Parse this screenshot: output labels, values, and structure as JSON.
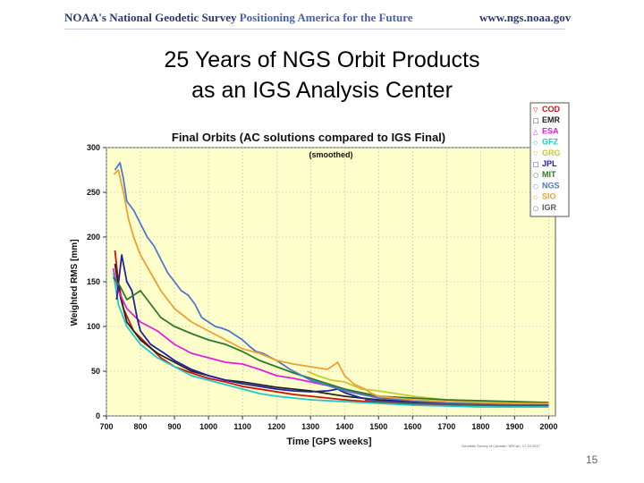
{
  "header": {
    "org": "NOAA's",
    "survey": "National Geodetic Survey",
    "tagline": "Positioning America for the Future",
    "url": "www.ngs.noaa.gov"
  },
  "slide": {
    "title_line1": "25 Years of NGS Orbit Products",
    "title_line2": "as an IGS Analysis Center",
    "page_number": "15"
  },
  "chart_data": {
    "type": "line",
    "title": "Final Orbits (AC solutions compared to IGS Final)",
    "subtitle": "(smoothed)",
    "xlabel": "Time [GPS weeks]",
    "ylabel": "Weighted RMS [mm]",
    "xlim": [
      700,
      2020
    ],
    "ylim": [
      0,
      300
    ],
    "xticks": [
      700,
      800,
      900,
      1000,
      1100,
      1200,
      1300,
      1400,
      1500,
      1600,
      1700,
      1800,
      1900,
      2000
    ],
    "yticks": [
      0,
      50,
      100,
      150,
      200,
      250,
      300
    ],
    "credit": "Geodetic Survey of Canada / NRCan, 17.10.2017",
    "legend_position": "top-right",
    "series": [
      {
        "name": "COD",
        "symbol": "▽",
        "color": "#d01010",
        "points": [
          [
            725,
            185
          ],
          [
            735,
            150
          ],
          [
            750,
            120
          ],
          [
            780,
            95
          ],
          [
            820,
            80
          ],
          [
            860,
            65
          ],
          [
            900,
            55
          ],
          [
            950,
            48
          ],
          [
            1000,
            42
          ],
          [
            1050,
            38
          ],
          [
            1100,
            33
          ],
          [
            1150,
            30
          ],
          [
            1200,
            27
          ],
          [
            1250,
            24
          ],
          [
            1300,
            22
          ],
          [
            1350,
            20
          ],
          [
            1400,
            18
          ],
          [
            1500,
            15
          ],
          [
            1600,
            13
          ],
          [
            1700,
            12
          ],
          [
            1800,
            12
          ],
          [
            1900,
            11
          ],
          [
            2000,
            11
          ]
        ]
      },
      {
        "name": "EMR",
        "symbol": "□",
        "color": "#222222",
        "points": [
          [
            725,
            170
          ],
          [
            740,
            135
          ],
          [
            760,
            105
          ],
          [
            800,
            85
          ],
          [
            850,
            70
          ],
          [
            900,
            60
          ],
          [
            950,
            50
          ],
          [
            1000,
            45
          ],
          [
            1050,
            40
          ],
          [
            1100,
            38
          ],
          [
            1150,
            35
          ],
          [
            1200,
            32
          ],
          [
            1250,
            30
          ],
          [
            1300,
            28
          ],
          [
            1350,
            25
          ],
          [
            1400,
            22
          ],
          [
            1500,
            18
          ],
          [
            1600,
            16
          ],
          [
            1700,
            15
          ],
          [
            1800,
            14
          ],
          [
            1900,
            13
          ],
          [
            2000,
            12
          ]
        ]
      },
      {
        "name": "ESA",
        "symbol": "△",
        "color": "#e020e0",
        "points": [
          [
            720,
            165
          ],
          [
            735,
            140
          ],
          [
            760,
            120
          ],
          [
            800,
            105
          ],
          [
            850,
            95
          ],
          [
            900,
            80
          ],
          [
            950,
            70
          ],
          [
            1000,
            65
          ],
          [
            1050,
            60
          ],
          [
            1100,
            58
          ],
          [
            1150,
            52
          ],
          [
            1200,
            45
          ],
          [
            1250,
            42
          ],
          [
            1300,
            38
          ],
          [
            1350,
            34
          ],
          [
            1400,
            30
          ],
          [
            1450,
            25
          ],
          [
            1500,
            20
          ],
          [
            1600,
            17
          ],
          [
            1700,
            15
          ],
          [
            1800,
            14
          ],
          [
            1900,
            13
          ],
          [
            2000,
            13
          ]
        ]
      },
      {
        "name": "GFZ",
        "symbol": "◇",
        "color": "#20c8c8",
        "points": [
          [
            720,
            160
          ],
          [
            735,
            125
          ],
          [
            760,
            100
          ],
          [
            800,
            80
          ],
          [
            850,
            65
          ],
          [
            900,
            55
          ],
          [
            950,
            45
          ],
          [
            1000,
            40
          ],
          [
            1050,
            35
          ],
          [
            1100,
            30
          ],
          [
            1150,
            25
          ],
          [
            1200,
            22
          ],
          [
            1250,
            20
          ],
          [
            1300,
            18
          ],
          [
            1400,
            16
          ],
          [
            1500,
            14
          ],
          [
            1600,
            12
          ],
          [
            1700,
            11
          ],
          [
            1800,
            10
          ],
          [
            1900,
            10
          ],
          [
            2000,
            10
          ]
        ]
      },
      {
        "name": "GRG",
        "symbol": "▽",
        "color": "#c8c830",
        "points": [
          [
            1290,
            50
          ],
          [
            1320,
            45
          ],
          [
            1360,
            40
          ],
          [
            1400,
            38
          ],
          [
            1450,
            30
          ],
          [
            1500,
            28
          ],
          [
            1550,
            25
          ],
          [
            1600,
            22
          ],
          [
            1700,
            18
          ],
          [
            1800,
            16
          ],
          [
            1900,
            15
          ],
          [
            2000,
            14
          ]
        ]
      },
      {
        "name": "JPL",
        "symbol": "□",
        "color": "#2020a0",
        "points": [
          [
            730,
            130
          ],
          [
            745,
            180
          ],
          [
            760,
            150
          ],
          [
            775,
            140
          ],
          [
            790,
            110
          ],
          [
            800,
            95
          ],
          [
            830,
            80
          ],
          [
            870,
            70
          ],
          [
            900,
            62
          ],
          [
            950,
            52
          ],
          [
            1000,
            45
          ],
          [
            1050,
            40
          ],
          [
            1100,
            36
          ],
          [
            1150,
            33
          ],
          [
            1200,
            30
          ],
          [
            1250,
            28
          ],
          [
            1300,
            27
          ],
          [
            1350,
            28
          ],
          [
            1380,
            30
          ],
          [
            1400,
            26
          ],
          [
            1450,
            20
          ],
          [
            1500,
            17
          ],
          [
            1600,
            15
          ],
          [
            1700,
            14
          ],
          [
            1800,
            13
          ],
          [
            1900,
            12
          ],
          [
            2000,
            12
          ]
        ]
      },
      {
        "name": "MIT",
        "symbol": "○",
        "color": "#2a7a2a",
        "points": [
          [
            720,
            155
          ],
          [
            740,
            145
          ],
          [
            760,
            130
          ],
          [
            800,
            140
          ],
          [
            830,
            125
          ],
          [
            860,
            110
          ],
          [
            900,
            100
          ],
          [
            950,
            92
          ],
          [
            1000,
            85
          ],
          [
            1050,
            80
          ],
          [
            1100,
            72
          ],
          [
            1150,
            62
          ],
          [
            1200,
            55
          ],
          [
            1250,
            48
          ],
          [
            1300,
            42
          ],
          [
            1350,
            36
          ],
          [
            1400,
            30
          ],
          [
            1450,
            26
          ],
          [
            1500,
            22
          ],
          [
            1600,
            20
          ],
          [
            1700,
            18
          ],
          [
            1800,
            17
          ],
          [
            1900,
            16
          ],
          [
            2000,
            15
          ]
        ]
      },
      {
        "name": "NGS",
        "symbol": "○",
        "color": "#4a78d0",
        "points": [
          [
            725,
            275
          ],
          [
            740,
            283
          ],
          [
            750,
            265
          ],
          [
            760,
            240
          ],
          [
            780,
            230
          ],
          [
            800,
            215
          ],
          [
            820,
            200
          ],
          [
            840,
            190
          ],
          [
            860,
            175
          ],
          [
            880,
            160
          ],
          [
            900,
            150
          ],
          [
            920,
            140
          ],
          [
            940,
            135
          ],
          [
            960,
            125
          ],
          [
            980,
            110
          ],
          [
            1000,
            105
          ],
          [
            1020,
            100
          ],
          [
            1040,
            98
          ],
          [
            1060,
            95
          ],
          [
            1080,
            90
          ],
          [
            1100,
            85
          ],
          [
            1120,
            78
          ],
          [
            1140,
            72
          ],
          [
            1160,
            70
          ],
          [
            1180,
            66
          ],
          [
            1200,
            62
          ],
          [
            1220,
            57
          ],
          [
            1240,
            52
          ],
          [
            1260,
            48
          ],
          [
            1280,
            44
          ],
          [
            1300,
            40
          ],
          [
            1350,
            34
          ],
          [
            1400,
            28
          ],
          [
            1450,
            24
          ],
          [
            1500,
            20
          ],
          [
            1600,
            17
          ],
          [
            1700,
            15
          ],
          [
            1800,
            14
          ],
          [
            1900,
            13
          ],
          [
            2000,
            13
          ]
        ]
      },
      {
        "name": "SIO",
        "symbol": "◇",
        "color": "#f0a030",
        "points": [
          [
            722,
            270
          ],
          [
            735,
            275
          ],
          [
            750,
            250
          ],
          [
            765,
            220
          ],
          [
            780,
            200
          ],
          [
            800,
            180
          ],
          [
            830,
            160
          ],
          [
            860,
            140
          ],
          [
            900,
            120
          ],
          [
            950,
            105
          ],
          [
            1000,
            95
          ],
          [
            1050,
            85
          ],
          [
            1100,
            75
          ],
          [
            1150,
            70
          ],
          [
            1200,
            62
          ],
          [
            1250,
            58
          ],
          [
            1300,
            55
          ],
          [
            1350,
            52
          ],
          [
            1380,
            60
          ],
          [
            1400,
            45
          ],
          [
            1430,
            35
          ],
          [
            1460,
            30
          ],
          [
            1480,
            25
          ],
          [
            1500,
            22
          ],
          [
            1550,
            20
          ],
          [
            1600,
            18
          ],
          [
            1700,
            16
          ],
          [
            1800,
            15
          ],
          [
            1900,
            14
          ],
          [
            2000,
            14
          ]
        ]
      },
      {
        "name": "IGR",
        "symbol": "○",
        "color": "#5a5a5a",
        "points": [
          [
            1460,
            18
          ],
          [
            1500,
            16
          ],
          [
            1550,
            15
          ],
          [
            1600,
            14
          ],
          [
            1700,
            13
          ],
          [
            1800,
            12
          ],
          [
            1900,
            12
          ],
          [
            2000,
            12
          ]
        ]
      }
    ]
  }
}
